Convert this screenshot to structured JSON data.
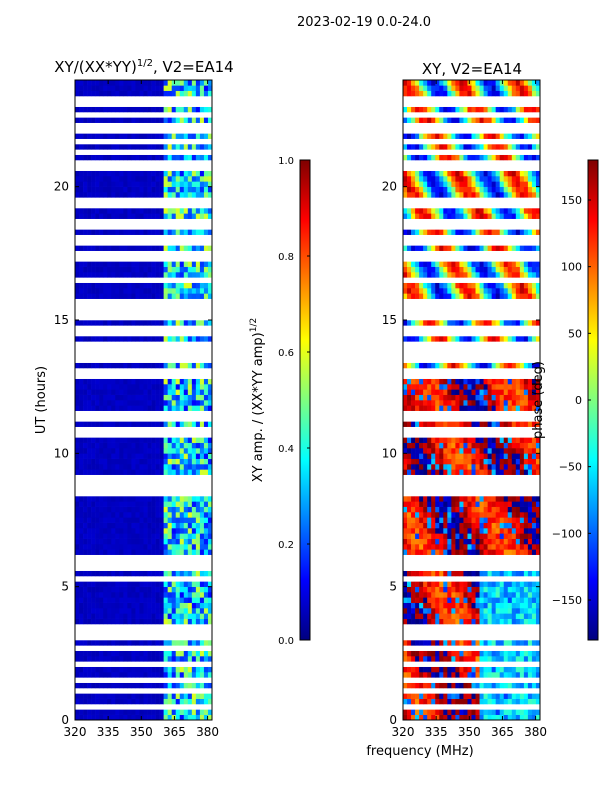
{
  "figure_title": "2023-02-19 0.0-24.0",
  "shared_xlabel": "frequency (MHz)",
  "colors": {
    "jet": [
      "#00007f",
      "#0000ff",
      "#007fff",
      "#00ffff",
      "#7fff7f",
      "#ffff00",
      "#ff7f00",
      "#ff0000",
      "#7f0000"
    ],
    "gap": "#ffffff"
  },
  "chart_data": [
    {
      "type": "heatmap",
      "id": "amp",
      "title": "XY/(XX*YY)",
      "title_exponent": "1/2",
      "title_suffix": ", V2=EA14",
      "xlabel": "",
      "ylabel": "UT (hours)",
      "xlim": [
        320,
        382
      ],
      "ylim": [
        0,
        24
      ],
      "xticks": [
        320,
        335,
        350,
        365,
        380
      ],
      "yticks": [
        0,
        5,
        10,
        15,
        20
      ],
      "colorbar": {
        "label": "XY amp. / (XX*YY amp)",
        "label_exponent": "1/2",
        "range": [
          0.0,
          1.0
        ],
        "ticks": [
          "0.0",
          "0.2",
          "0.4",
          "0.6",
          "0.8",
          "1.0"
        ]
      },
      "description_values": {
        "background_value": 0.05,
        "bright_band_mhz": [
          360,
          382
        ],
        "bright_band_value_range": [
          0.2,
          0.6
        ]
      }
    },
    {
      "type": "heatmap",
      "id": "phase",
      "title": "XY, V2=EA14",
      "xlabel": "frequency (MHz)",
      "ylabel": "",
      "xlim": [
        320,
        382
      ],
      "ylim": [
        0,
        24
      ],
      "xticks": [
        320,
        335,
        350,
        365,
        380
      ],
      "yticks": [
        0,
        5,
        10,
        15,
        20
      ],
      "colorbar": {
        "label": "phase (deg)",
        "range": [
          -180,
          180
        ],
        "ticks": [
          "150",
          "100",
          "50",
          "0",
          "−50",
          "−100",
          "−150"
        ],
        "tick_values": [
          150,
          100,
          50,
          0,
          -50,
          -100,
          -150
        ]
      }
    }
  ],
  "flagged_hours": [
    0.5,
    1.0,
    1.5,
    2.0,
    2.6,
    3.0,
    3.2,
    3.35,
    3.5,
    5.3,
    5.7,
    5.85,
    6.0,
    8.4,
    8.55,
    8.7,
    8.85,
    9.0,
    10.7,
    10.9,
    11.3,
    11.5,
    12.9,
    13.1,
    13.4,
    13.6,
    13.9,
    14.1,
    14.4,
    14.6,
    15.0,
    15.2,
    15.4,
    15.55,
    15.7,
    16.5,
    17.2,
    17.5,
    17.9,
    18.1,
    18.4,
    18.6,
    19.2,
    19.5,
    20.6,
    20.9,
    21.3,
    21.6,
    22.0,
    22.3,
    22.6,
    23.0,
    23.2
  ]
}
